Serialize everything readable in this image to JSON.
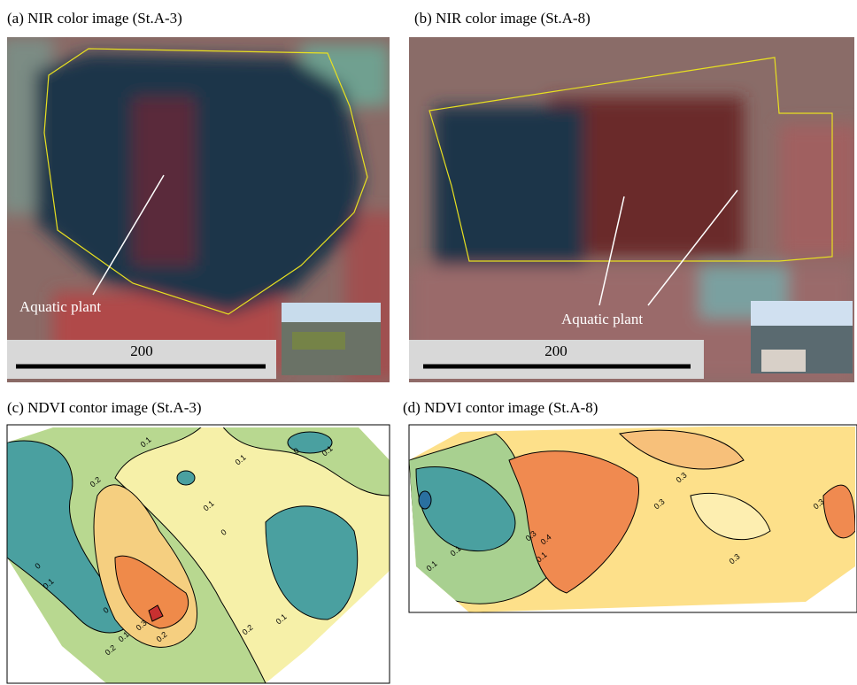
{
  "panels": [
    {
      "title": "(a) NIR color image (St.A-3)",
      "annotation": "Aquatic plant",
      "scale_label": "200"
    },
    {
      "title": "(b) NIR color image (St.A-8)",
      "annotation": "Aquatic plant",
      "scale_label": "200"
    },
    {
      "title": "(c) NDVI contor image (St.A-3)",
      "contour_labels": [
        "0.1",
        "0.1",
        "0",
        "0.1",
        "0.2",
        "0.1",
        "0",
        "0",
        "0.1",
        "0",
        "0.3",
        "0.2",
        "0.1",
        "0.2",
        "0.1",
        "0.2"
      ]
    },
    {
      "title": "(d) NDVI contor image (St.A-8)",
      "contour_labels": [
        "0.3",
        "0.3",
        "0.3",
        "0.3",
        "0.3",
        "0.4",
        "0.1",
        "0.1",
        "0.1"
      ]
    }
  ]
}
